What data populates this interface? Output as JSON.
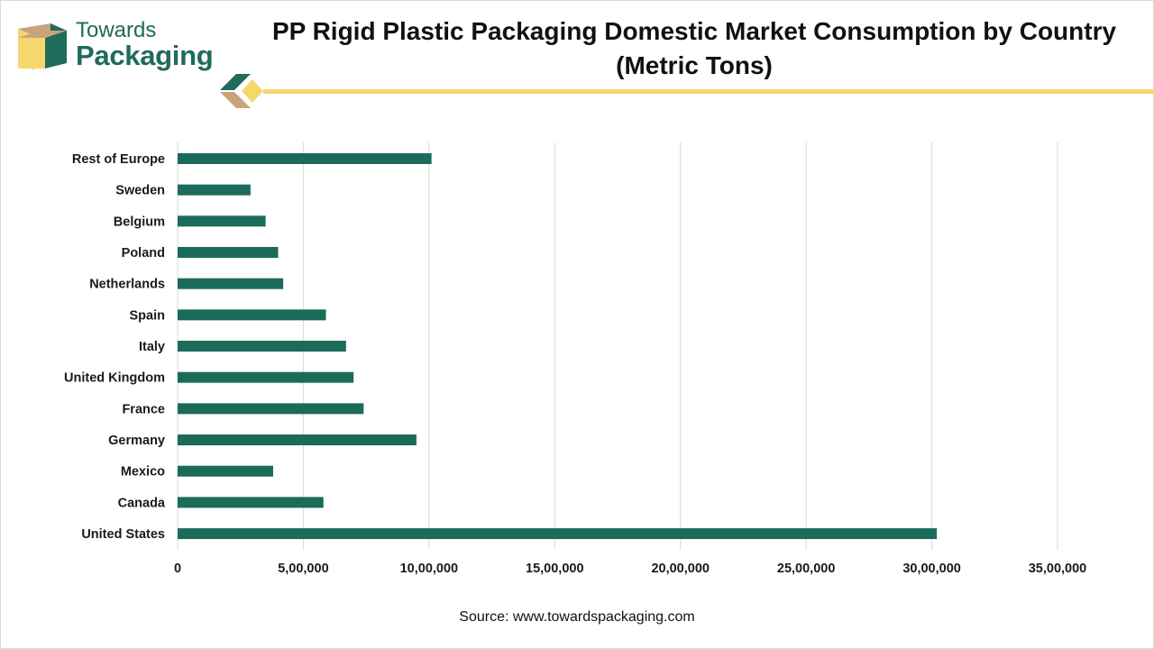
{
  "brand": {
    "line1": "Towards",
    "line2": "Packaging"
  },
  "colors": {
    "bar": "#1b6b5a",
    "grid": "#d9d9d9",
    "accent_yellow": "#f5d76e",
    "accent_tan": "#c9a37a",
    "brand_green": "#1f6b5c"
  },
  "source": "Source: www.towardspackaging.com",
  "chart_data": {
    "type": "bar",
    "orientation": "horizontal",
    "title": "PP Rigid Plastic Packaging Domestic Market Consumption by Country (Metric Tons)",
    "title_line1": "PP Rigid Plastic Packaging Domestic Market Consumption by Country",
    "title_line2": "(Metric Tons)",
    "xlabel": "",
    "ylabel": "",
    "xlim": [
      0,
      3500000
    ],
    "grid": true,
    "categories": [
      "Rest of Europe",
      "Sweden",
      "Belgium",
      "Poland",
      "Netherlands",
      "Spain",
      "Italy",
      "United Kingdom",
      "France",
      "Germany",
      "Mexico",
      "Canada",
      "United States"
    ],
    "values": [
      1010000,
      290000,
      350000,
      400000,
      420000,
      590000,
      670000,
      700000,
      740000,
      950000,
      380000,
      580000,
      3020000
    ],
    "ticks": [
      0,
      500000,
      1000000,
      1500000,
      2000000,
      2500000,
      3000000,
      3500000
    ],
    "tick_labels": [
      "0",
      "5,00,000",
      "10,00,000",
      "15,00,000",
      "20,00,000",
      "25,00,000",
      "30,00,000",
      "35,00,000"
    ]
  }
}
